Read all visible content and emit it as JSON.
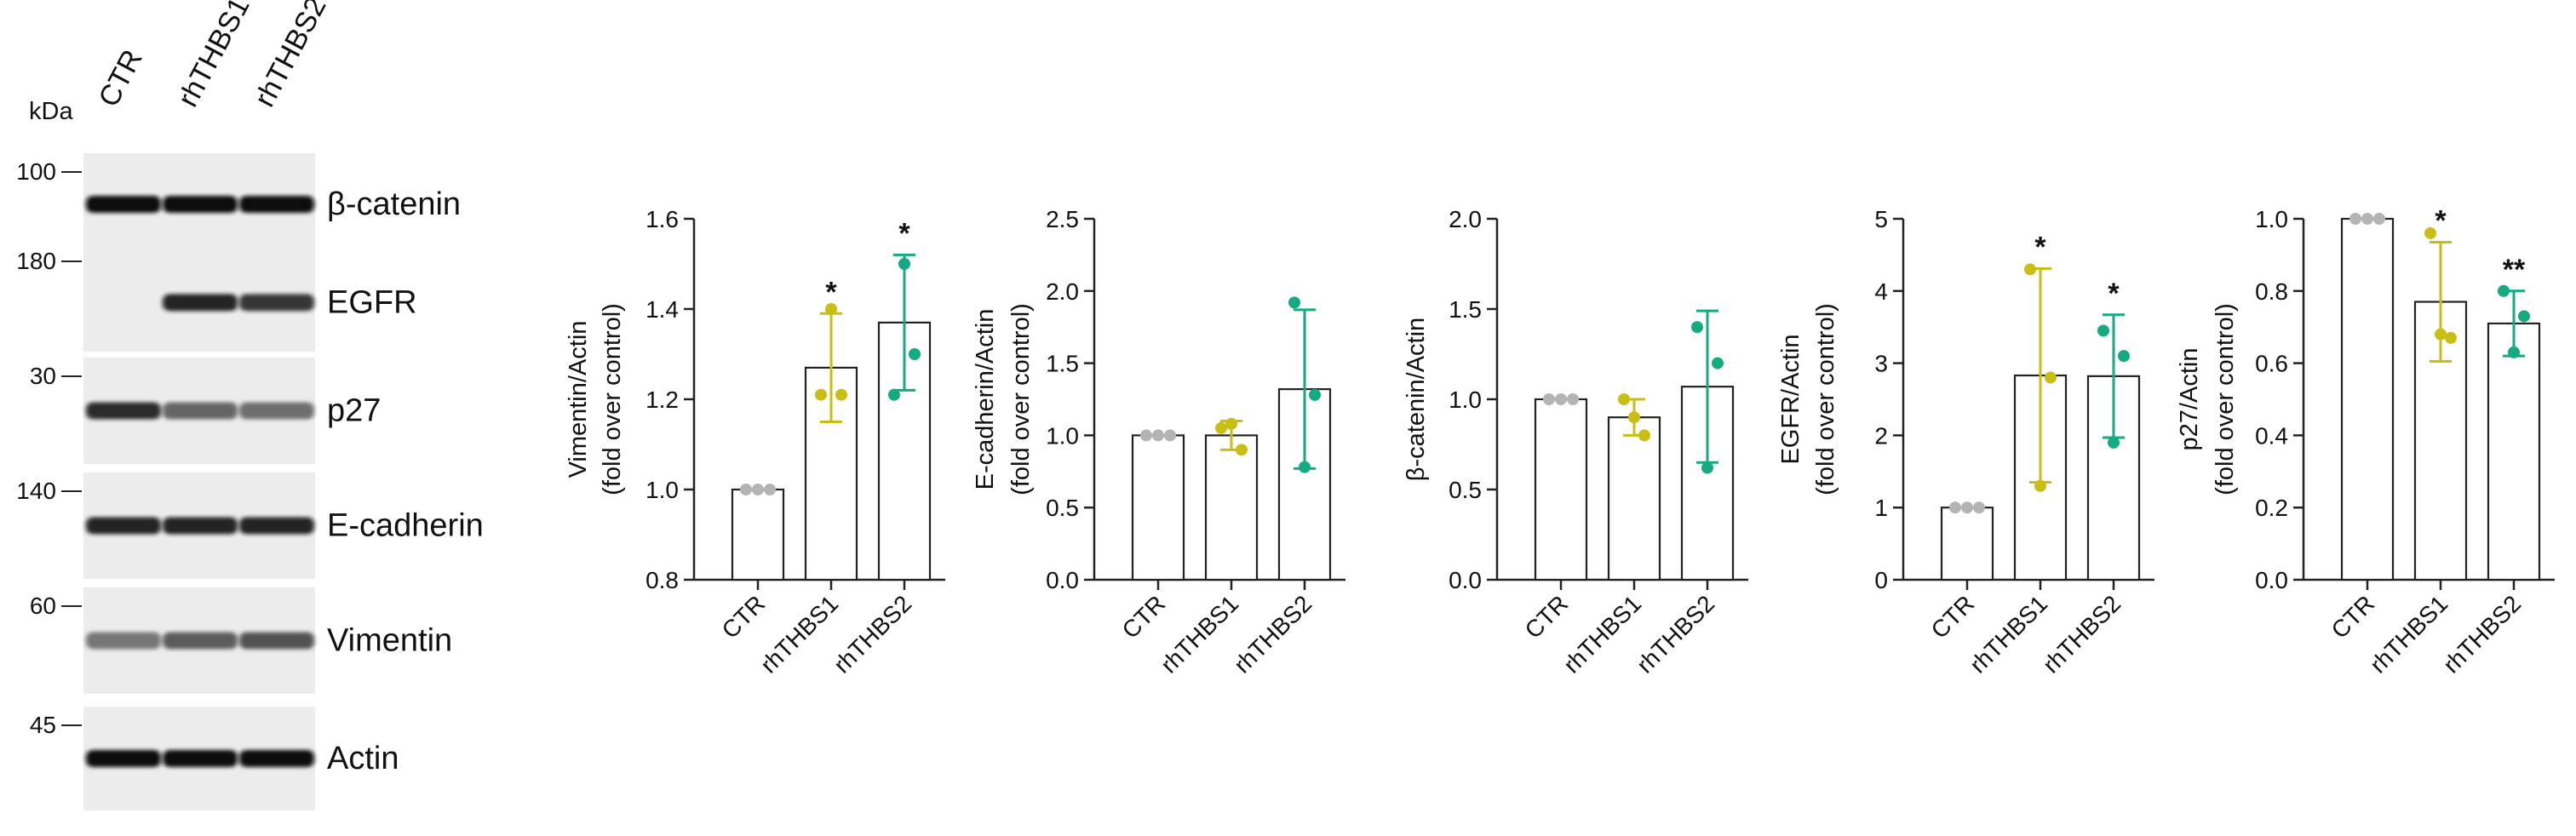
{
  "colors": {
    "ctr": "#b4b4b4",
    "rhthbs1": "#c8be14",
    "rhthbs2": "#14aa82",
    "axis": "#222222",
    "bar_fill": "#ffffff"
  },
  "blot": {
    "unit_label": "kDa",
    "lanes": [
      "CTR",
      "rhTHBS1",
      "rhTHBS2"
    ],
    "panels": [
      {
        "protein": "β-catenin",
        "marker": "100",
        "band_intensity": [
          1.0,
          1.0,
          1.0
        ]
      },
      {
        "protein": "EGFR",
        "marker": "180",
        "band_intensity": [
          0.0,
          0.9,
          0.8
        ]
      },
      {
        "protein": "p27",
        "marker": "30",
        "band_intensity": [
          0.85,
          0.55,
          0.5
        ]
      },
      {
        "protein": "E-cadherin",
        "marker": "140",
        "band_intensity": [
          0.9,
          0.9,
          0.9
        ]
      },
      {
        "protein": "Vimentin",
        "marker": "60",
        "band_intensity": [
          0.45,
          0.6,
          0.65
        ]
      },
      {
        "protein": "Actin",
        "marker": "45",
        "band_intensity": [
          1.0,
          1.0,
          1.0
        ]
      }
    ]
  },
  "chart_data": [
    {
      "type": "bar",
      "ylabel": "Vimentin/Actin",
      "ylabel2": "(fold over control)",
      "categories": [
        "CTR",
        "rhTHBS1",
        "rhTHBS2"
      ],
      "values": [
        1.0,
        1.27,
        1.37
      ],
      "error": [
        0.0,
        0.12,
        0.15
      ],
      "points": [
        [
          1.0,
          1.0,
          1.0
        ],
        [
          1.21,
          1.21,
          1.4
        ],
        [
          1.21,
          1.3,
          1.5
        ]
      ],
      "significance": [
        "",
        "*",
        "*"
      ],
      "ylim": [
        0.8,
        1.6
      ],
      "ticks": [
        0.8,
        1.0,
        1.2,
        1.4,
        1.6
      ],
      "tick_labels": [
        "0.8",
        "1.0",
        "1.2",
        "1.4",
        "1.6"
      ]
    },
    {
      "type": "bar",
      "ylabel": "E-cadherin/Actin",
      "ylabel2": "(fold over control)",
      "categories": [
        "CTR",
        "rhTHBS1",
        "rhTHBS2"
      ],
      "values": [
        1.0,
        1.0,
        1.32
      ],
      "error": [
        0.0,
        0.1,
        0.55
      ],
      "points": [
        [
          1.0,
          1.0,
          1.0
        ],
        [
          1.05,
          0.9,
          1.08
        ],
        [
          1.92,
          1.28,
          0.78
        ]
      ],
      "significance": [
        "",
        "",
        ""
      ],
      "ylim": [
        0.0,
        2.5
      ],
      "ticks": [
        0.0,
        0.5,
        1.0,
        1.5,
        2.0,
        2.5
      ],
      "tick_labels": [
        "0.0",
        "0.5",
        "1.0",
        "1.5",
        "2.0",
        "2.5"
      ]
    },
    {
      "type": "bar",
      "ylabel": "β-catenin/Actin",
      "ylabel2": "",
      "categories": [
        "CTR",
        "rhTHBS1",
        "rhTHBS2"
      ],
      "values": [
        1.0,
        0.9,
        1.07
      ],
      "error": [
        0.0,
        0.1,
        0.42
      ],
      "points": [
        [
          1.0,
          1.0,
          1.0
        ],
        [
          1.0,
          0.8,
          0.9
        ],
        [
          1.4,
          1.2,
          0.62
        ]
      ],
      "significance": [
        "",
        "",
        ""
      ],
      "ylim": [
        0.0,
        2.0
      ],
      "ticks": [
        0.0,
        0.5,
        1.0,
        1.5,
        2.0
      ],
      "tick_labels": [
        "0.0",
        "0.5",
        "1.0",
        "1.5",
        "2.0"
      ]
    },
    {
      "type": "bar",
      "ylabel": "EGFR/Actin",
      "ylabel2": "(fold over control)",
      "categories": [
        "CTR",
        "rhTHBS1",
        "rhTHBS2"
      ],
      "values": [
        1.0,
        2.83,
        2.82
      ],
      "error": [
        0.0,
        1.48,
        0.85
      ],
      "points": [
        [
          1.0,
          1.0,
          1.0
        ],
        [
          4.3,
          2.8,
          1.3
        ],
        [
          3.45,
          3.1,
          1.9
        ]
      ],
      "significance": [
        "",
        "*",
        "*"
      ],
      "ylim": [
        0,
        5
      ],
      "ticks": [
        0,
        1,
        2,
        3,
        4,
        5
      ],
      "tick_labels": [
        "0",
        "1",
        "2",
        "3",
        "4",
        "5"
      ]
    },
    {
      "type": "bar",
      "ylabel": "p27/Actin",
      "ylabel2": "(fold over control)",
      "categories": [
        "CTR",
        "rhTHBS1",
        "rhTHBS2"
      ],
      "values": [
        1.0,
        0.77,
        0.71
      ],
      "error": [
        0.0,
        0.165,
        0.09
      ],
      "points": [
        [
          1.0,
          1.0,
          1.0
        ],
        [
          0.96,
          0.67,
          0.68
        ],
        [
          0.8,
          0.73,
          0.63
        ]
      ],
      "significance": [
        "",
        "*",
        "**"
      ],
      "ylim": [
        0.0,
        1.0
      ],
      "ticks": [
        0.0,
        0.2,
        0.4,
        0.6,
        0.8,
        1.0
      ],
      "tick_labels": [
        "0.0",
        "0.2",
        "0.4",
        "0.6",
        "0.8",
        "1.0"
      ]
    }
  ]
}
